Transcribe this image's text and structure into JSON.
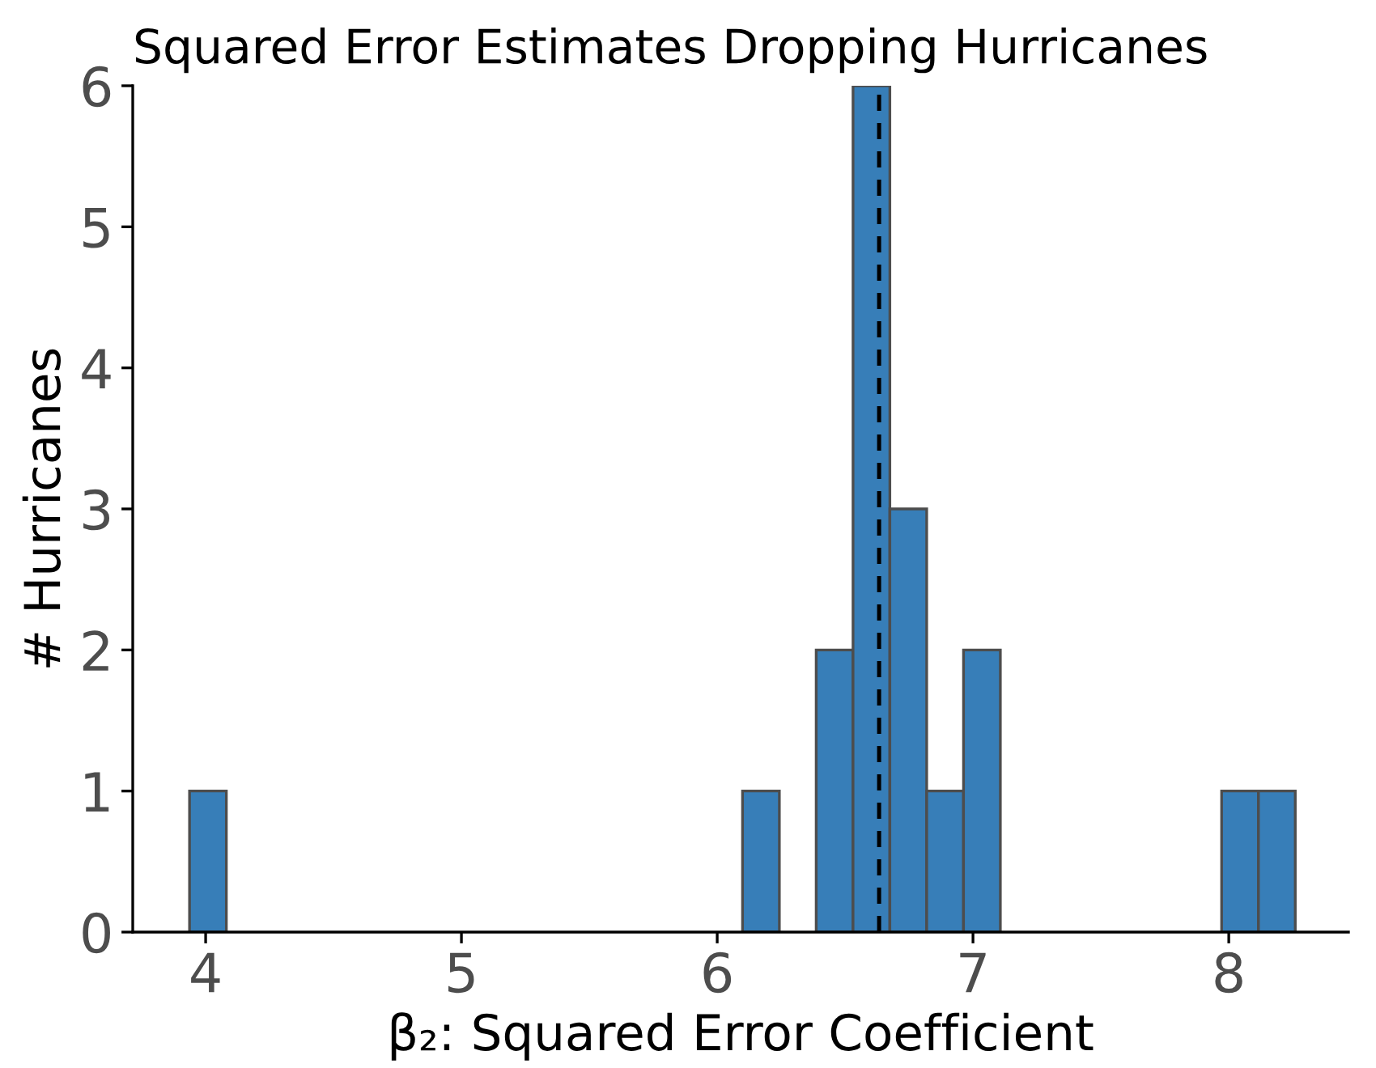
{
  "chart_data": {
    "type": "histogram",
    "title": "Squared Error Estimates Dropping Hurricanes",
    "xlabel": "β₂: Squared Error Coefficient",
    "ylabel": "# Hurricanes",
    "bins": [
      3.937,
      4.081,
      4.225,
      4.369,
      4.513,
      4.658,
      4.802,
      4.946,
      5.09,
      5.234,
      5.378,
      5.522,
      5.666,
      5.81,
      5.954,
      6.099,
      6.243,
      6.387,
      6.531,
      6.675,
      6.819,
      6.963,
      7.107,
      7.251,
      7.395,
      7.54,
      7.684,
      7.828,
      7.972,
      8.116,
      8.26
    ],
    "values": [
      1,
      0,
      0,
      0,
      0,
      0,
      0,
      0,
      0,
      0,
      0,
      0,
      0,
      0,
      0,
      1,
      0,
      2,
      6,
      3,
      1,
      2,
      0,
      0,
      0,
      0,
      0,
      0,
      1,
      1
    ],
    "color": "#377eb8",
    "xlim": [
      3.715,
      8.468
    ],
    "xticks": [
      4,
      5,
      6,
      7,
      8
    ],
    "ylim": [
      0,
      6
    ],
    "yticks": [
      0,
      1,
      2,
      3,
      4,
      5,
      6
    ],
    "ref_lines": [
      {
        "axis": "x",
        "value": 6.633,
        "color": "#000000",
        "line_style": "dashed"
      }
    ],
    "grid": false,
    "legend": false
  }
}
